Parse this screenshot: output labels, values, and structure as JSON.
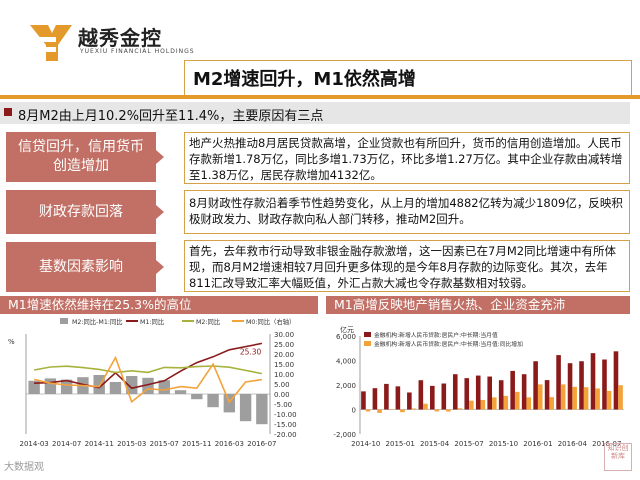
{
  "header": {
    "brand": "越秀金控",
    "brand_sub": "YUEXIU FINANCIAL HOLDINGS",
    "title": "M2增速回升，M1依然高增"
  },
  "banner": {
    "text": "8月M2由上月10.2%回升至11.4%，主要原因有三点"
  },
  "reasons": [
    {
      "label": "信贷回升，信用货币创造增加",
      "text": "地产火热推动8月居民贷款高增，企业贷款也有所回升，货币的信用创造增加。人民币存款新增1.78万亿，同比多增1.73万亿，环比多增1.27万亿。其中企业存款由减转增至1.38万亿，居民存款增加4132亿。"
    },
    {
      "label": "财政存款回落",
      "text": "8月财政性存款沿着季节性趋势变化，从上月的增加4882亿转为减少1809亿，反映积极财政发力、财政存款向私人部门转移，推动M2回升。"
    },
    {
      "label": "基数因素影响",
      "text": "首先，去年救市行动导致非银金融存款激增，这一因素已在7月M2同比增速中有所体现，而8月M2增速相较7月回升更多体现的是今年8月存款的边际变化。其次，去年811汇改导致汇率大幅贬值，外汇占款大减也令存款基数相对较弱。"
    }
  ],
  "colors": {
    "accent": "#c27066",
    "gold": "#d4a04a",
    "dark_red": "#8b1a1a",
    "orange": "#f4a23a"
  },
  "chart_data": [
    {
      "type": "bar",
      "title": "M1增速依然维持在25.3%的高位",
      "unit_left": "%",
      "x": [
        "2014-03",
        "2014-05",
        "2014-07",
        "2014-09",
        "2014-11",
        "2015-01",
        "2015-03",
        "2015-05",
        "2015-07",
        "2015-09",
        "2015-11",
        "2016-01",
        "2016-03",
        "2016-05",
        "2016-07"
      ],
      "x_tick_labels": [
        "2014-03",
        "2014-07",
        "2014-11",
        "2015-03",
        "2015-07",
        "2015-11",
        "2016-03",
        "2016-07"
      ],
      "ylim_right": [
        -20,
        30
      ],
      "y_ticks_right": [
        "-20.00",
        "-15.00",
        "-10.00",
        "-5.00",
        "0.00",
        "5.00",
        "10.00",
        "15.00",
        "20.00",
        "25.00",
        "30.00"
      ],
      "series": [
        {
          "name": "M2:同比-M1:同比",
          "kind": "bar",
          "color": "#9e9e9e",
          "values": [
            6.6,
            7.8,
            7.2,
            8.4,
            9.5,
            6.0,
            9.0,
            8.1,
            6.9,
            1.9,
            -2.6,
            -6.6,
            -9.2,
            -13.6,
            -15.1
          ]
        },
        {
          "name": "M1:同比",
          "kind": "line",
          "color": "#8b1a1a",
          "values": [
            5.4,
            5.7,
            6.7,
            4.8,
            3.2,
            10.6,
            2.9,
            4.7,
            6.6,
            11.4,
            15.7,
            18.6,
            22.1,
            23.7,
            25.3
          ]
        },
        {
          "name": "M2:同比",
          "kind": "line",
          "color": "#a7b23c",
          "values": [
            12.0,
            13.5,
            13.9,
            13.2,
            12.3,
            10.8,
            11.6,
            10.8,
            13.3,
            13.1,
            13.7,
            14.0,
            13.4,
            11.8,
            10.2
          ]
        },
        {
          "name": "M0:同比（右轴）",
          "kind": "line",
          "color": "#f4a23a",
          "values": [
            7.3,
            5.4,
            4.5,
            4.2,
            3.7,
            18.2,
            -3.9,
            2.6,
            2.0,
            3.7,
            2.9,
            15.0,
            -4.1,
            6.0,
            7.2
          ]
        }
      ],
      "annotations": [
        "25.30"
      ]
    },
    {
      "type": "bar",
      "title": "M1高增反映地产销售火热、企业资金充沛",
      "ylabel": "亿元",
      "ylim": [
        -2000,
        6000
      ],
      "y_ticks": [
        "-2,000",
        "0",
        "2,000",
        "4,000",
        "6,000"
      ],
      "x": [
        "2014-10",
        "2014-11",
        "2014-12",
        "2015-01",
        "2015-02",
        "2015-03",
        "2015-04",
        "2015-05",
        "2015-06",
        "2015-07",
        "2015-08",
        "2015-09",
        "2015-10",
        "2015-11",
        "2015-12",
        "2016-01",
        "2016-02",
        "2016-03",
        "2016-04",
        "2016-05",
        "2016-06",
        "2016-07",
        "2016-08"
      ],
      "x_tick_labels": [
        "2014-10",
        "2015-01",
        "2015-04",
        "2015-07",
        "2015-10",
        "2016-01",
        "2016-04",
        "2016-07"
      ],
      "series": [
        {
          "name": "金融机构:新增人民币贷款:居民户:中长期:当月值",
          "kind": "bar",
          "color": "#8b1a1a",
          "values": [
            1480,
            1740,
            2090,
            1890,
            1390,
            2390,
            1930,
            2120,
            2880,
            2560,
            2770,
            2690,
            2390,
            3150,
            2880,
            3940,
            2400,
            4440,
            3780,
            3940,
            4600,
            4080,
            4750
          ]
        },
        {
          "name": "金融机构:新增人民币贷款:居民户:中长期:当月值:同比增加",
          "kind": "bar",
          "color": "#f4a23a",
          "values": [
            -160,
            -280,
            -20,
            -220,
            80,
            470,
            -160,
            -170,
            100,
            720,
            780,
            990,
            1110,
            1440,
            990,
            2050,
            1010,
            2050,
            1850,
            1820,
            1720,
            1520,
            1980
          ]
        }
      ]
    }
  ],
  "watermark": "大数据观",
  "seal_text": "知识创新库"
}
